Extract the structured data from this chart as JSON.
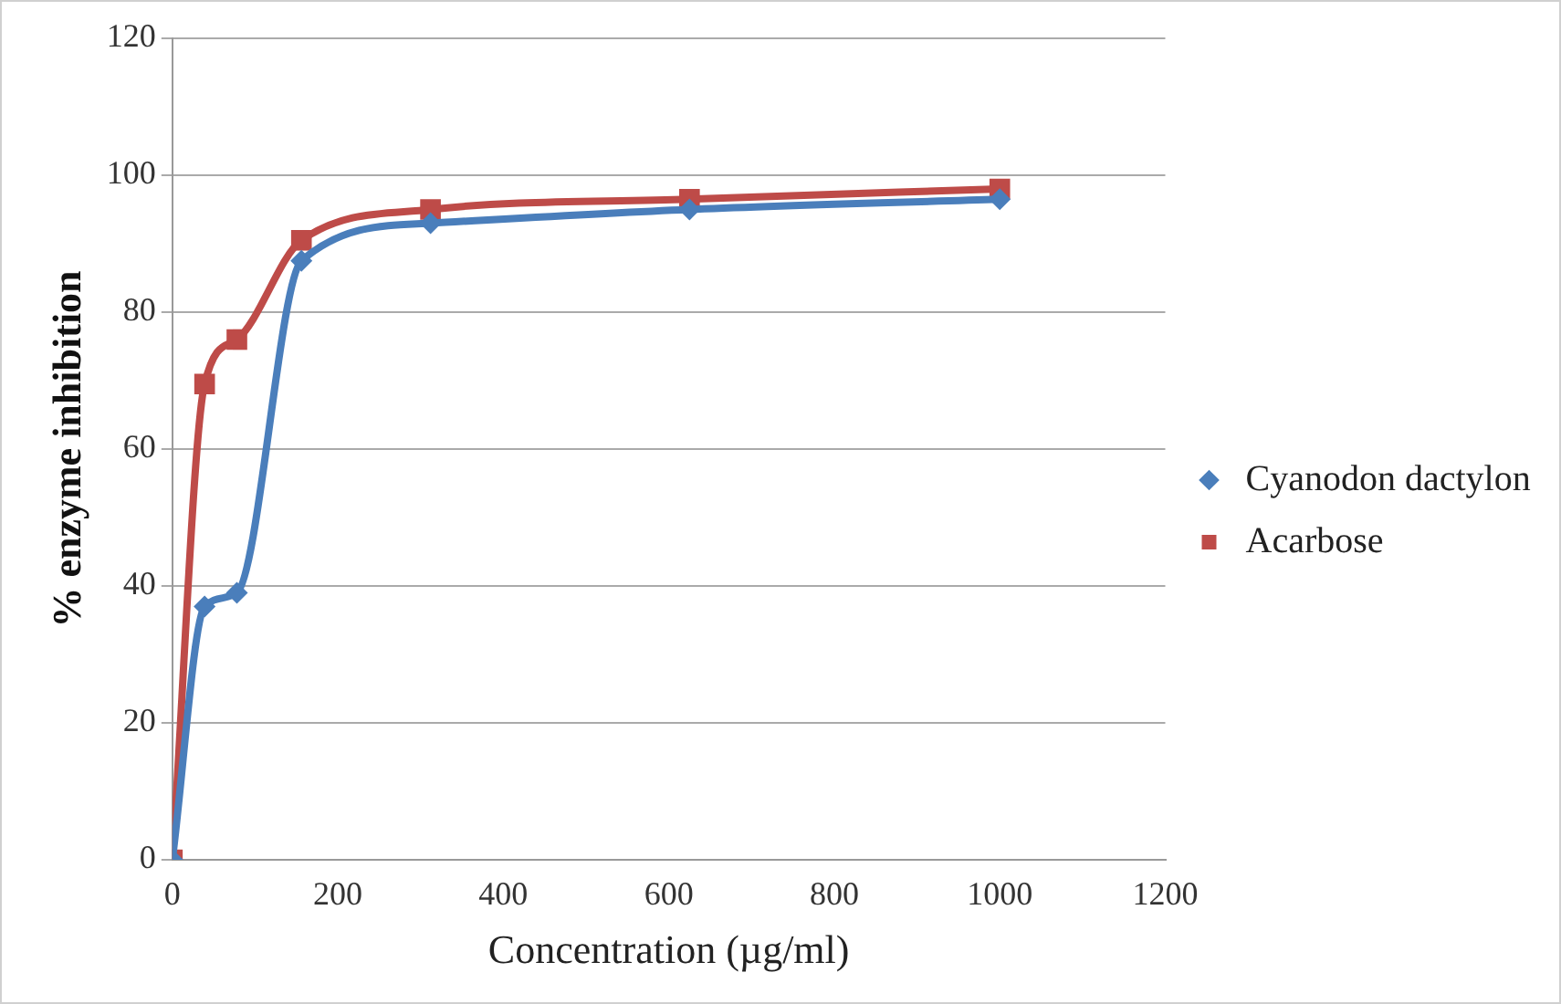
{
  "chart_data": {
    "type": "line",
    "xlabel": "Concentration (µg/ml)",
    "ylabel": "% enzyme inhibition",
    "x": [
      0,
      39,
      78,
      156,
      312,
      625,
      1000
    ],
    "series": [
      {
        "name": "Cyanodon dactylon",
        "color": "#4a7ebb",
        "marker": "diamond",
        "values": [
          0,
          37,
          39,
          87.5,
          93,
          95,
          96.5
        ]
      },
      {
        "name": "Acarbose",
        "color": "#be4b48",
        "marker": "square",
        "values": [
          0,
          69.5,
          76,
          90.5,
          95,
          96.5,
          98
        ]
      }
    ],
    "xlim": [
      0,
      1200
    ],
    "xticks": [
      0,
      200,
      400,
      600,
      800,
      1000,
      1200
    ],
    "ylim": [
      0,
      120
    ],
    "yticks": [
      0,
      20,
      40,
      60,
      80,
      100,
      120
    ],
    "grid": "y",
    "legend": "right"
  }
}
